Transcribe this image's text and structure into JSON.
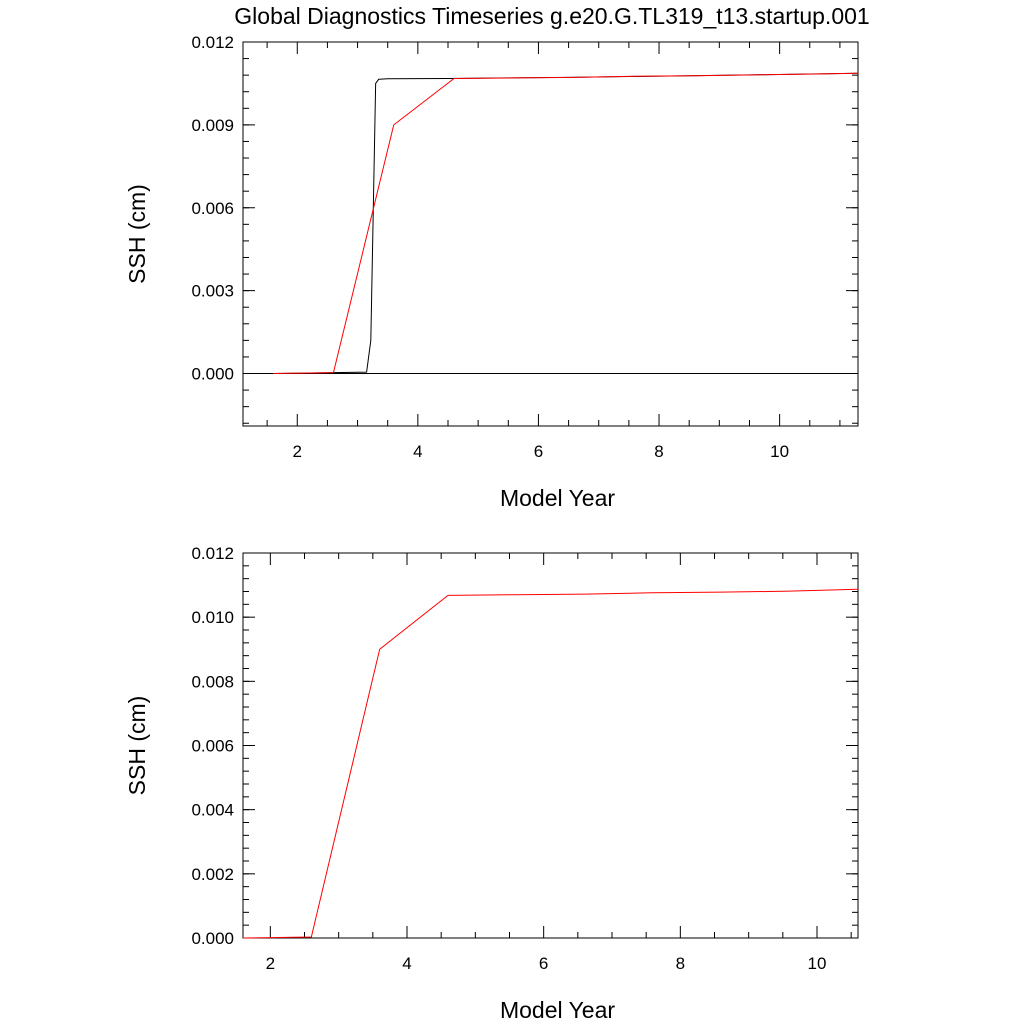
{
  "title": "Global Diagnostics Timeseries g.e20.G.TL319_t13.startup.001",
  "chart_data": [
    {
      "type": "line",
      "xlabel": "Model Year",
      "ylabel": "SSH (cm)",
      "xlim": [
        1.1,
        11.3
      ],
      "ylim": [
        -0.0019,
        0.012
      ],
      "x_ticks": [
        2,
        4,
        6,
        8,
        10
      ],
      "x_tick_labels": [
        "2",
        "4",
        "6",
        "8",
        "10"
      ],
      "y_ticks": [
        0.0,
        0.003,
        0.006,
        0.009,
        0.012
      ],
      "y_tick_labels": [
        "0.000",
        "0.003",
        "0.006",
        "0.009",
        "0.012"
      ],
      "zero_line": true,
      "grid": false,
      "series": [
        {
          "color": "#000000",
          "x": [
            1.6,
            2.0,
            2.6,
            3.15,
            3.22,
            3.3,
            3.35,
            3.5,
            4.5,
            5.5,
            6.5,
            7.5,
            8.5,
            9.5,
            10.5,
            11.3
          ],
          "y": [
            0.0,
            1e-05,
            3e-05,
            5e-05,
            0.0012,
            0.0105,
            0.01065,
            0.01067,
            0.01068,
            0.0107,
            0.01072,
            0.01075,
            0.01078,
            0.01081,
            0.01084,
            0.01087
          ]
        },
        {
          "color": "#ff0000",
          "x": [
            1.6,
            2.6,
            3.6,
            4.6,
            5.6,
            6.6,
            7.6,
            8.6,
            9.6,
            10.6,
            11.3
          ],
          "y": [
            0.0,
            3e-05,
            0.009,
            0.01068,
            0.0107,
            0.01072,
            0.01076,
            0.01078,
            0.01081,
            0.01084,
            0.01087
          ]
        }
      ]
    },
    {
      "type": "line",
      "xlabel": "Model Year",
      "ylabel": "SSH (cm)",
      "xlim": [
        1.6,
        10.6
      ],
      "ylim": [
        0.0,
        0.012
      ],
      "x_ticks": [
        2,
        4,
        6,
        8,
        10
      ],
      "x_tick_labels": [
        "2",
        "4",
        "6",
        "8",
        "10"
      ],
      "y_ticks": [
        0.0,
        0.002,
        0.004,
        0.006,
        0.008,
        0.01,
        0.012
      ],
      "y_tick_labels": [
        "0.000",
        "0.002",
        "0.004",
        "0.006",
        "0.008",
        "0.010",
        "0.012"
      ],
      "zero_line": false,
      "grid": false,
      "series": [
        {
          "color": "#ff0000",
          "x": [
            1.6,
            2.6,
            3.6,
            4.6,
            5.6,
            6.6,
            7.6,
            8.6,
            9.6,
            10.6
          ],
          "y": [
            0.0,
            3e-05,
            0.009,
            0.01068,
            0.0107,
            0.01072,
            0.01076,
            0.01078,
            0.01081,
            0.01087
          ]
        }
      ]
    }
  ]
}
